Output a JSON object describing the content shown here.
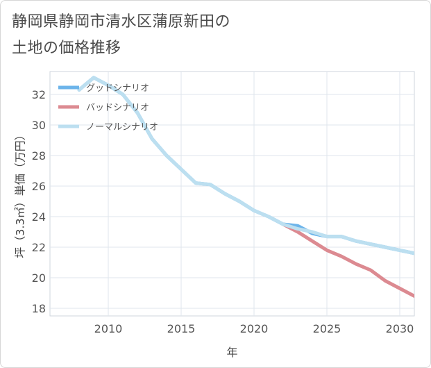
{
  "title_lines": [
    "静岡県静岡市清水区蒲原新田の",
    "土地の価格推移"
  ],
  "chart_data": {
    "type": "line",
    "xlabel": "年",
    "ylabel": "坪（3.3㎡）単価（万円）",
    "xlim": [
      2006,
      2031
    ],
    "ylim": [
      17.5,
      33.5
    ],
    "x_ticks": [
      2010,
      2015,
      2020,
      2025,
      2030
    ],
    "y_ticks": [
      18,
      20,
      22,
      24,
      26,
      28,
      30,
      32
    ],
    "grid": true,
    "legend_position": "top-left",
    "series": [
      {
        "name": "グッドシナリオ",
        "color": "#6cb4ea",
        "points": [
          [
            2008,
            32.3
          ],
          [
            2009,
            33.1
          ],
          [
            2010,
            32.6
          ],
          [
            2011,
            32.0
          ],
          [
            2012,
            30.8
          ],
          [
            2013,
            29.1
          ],
          [
            2014,
            28.0
          ],
          [
            2015,
            27.1
          ],
          [
            2016,
            26.2
          ],
          [
            2017,
            26.1
          ],
          [
            2018,
            25.5
          ],
          [
            2019,
            25.0
          ],
          [
            2020,
            24.4
          ],
          [
            2021,
            24.0
          ],
          [
            2022,
            23.5
          ],
          [
            2023,
            23.4
          ],
          [
            2024,
            22.9
          ],
          [
            2025,
            22.7
          ],
          [
            2026,
            22.7
          ],
          [
            2027,
            22.4
          ],
          [
            2028,
            22.2
          ],
          [
            2029,
            22.0
          ],
          [
            2030,
            21.8
          ],
          [
            2031,
            21.6
          ]
        ]
      },
      {
        "name": "バッドシナリオ",
        "color": "#dc8a91",
        "points": [
          [
            2022,
            23.5
          ],
          [
            2023,
            23.0
          ],
          [
            2024,
            22.4
          ],
          [
            2025,
            21.8
          ],
          [
            2026,
            21.4
          ],
          [
            2027,
            20.9
          ],
          [
            2028,
            20.5
          ],
          [
            2029,
            19.8
          ],
          [
            2030,
            19.3
          ],
          [
            2031,
            18.8
          ]
        ]
      },
      {
        "name": "ノーマルシナリオ",
        "color": "#bcdff0",
        "points": [
          [
            2008,
            32.3
          ],
          [
            2009,
            33.1
          ],
          [
            2010,
            32.6
          ],
          [
            2011,
            32.0
          ],
          [
            2012,
            30.8
          ],
          [
            2013,
            29.1
          ],
          [
            2014,
            28.0
          ],
          [
            2015,
            27.1
          ],
          [
            2016,
            26.2
          ],
          [
            2017,
            26.1
          ],
          [
            2018,
            25.5
          ],
          [
            2019,
            25.0
          ],
          [
            2020,
            24.4
          ],
          [
            2021,
            24.0
          ],
          [
            2022,
            23.5
          ],
          [
            2023,
            23.2
          ],
          [
            2024,
            23.0
          ],
          [
            2025,
            22.7
          ],
          [
            2026,
            22.7
          ],
          [
            2027,
            22.4
          ],
          [
            2028,
            22.2
          ],
          [
            2029,
            22.0
          ],
          [
            2030,
            21.8
          ],
          [
            2031,
            21.6
          ]
        ]
      }
    ]
  }
}
